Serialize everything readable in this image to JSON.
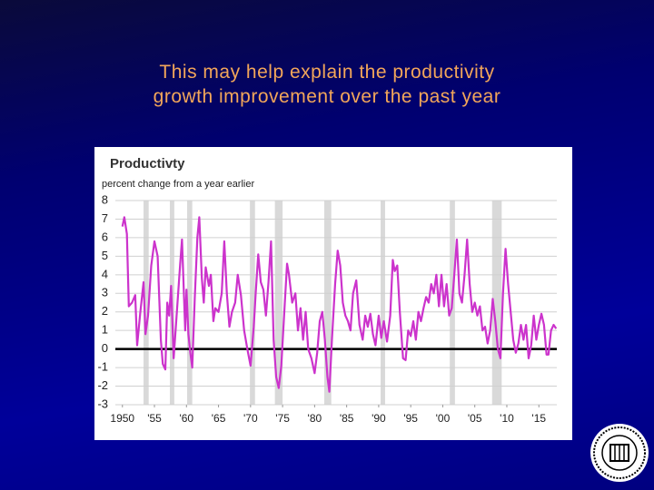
{
  "slide": {
    "title_lines": [
      "This may help explain the productivity",
      "growth improvement over the past year"
    ]
  },
  "chart_data": {
    "type": "line",
    "title": "Productivty",
    "subtitle": "percent change from a year earlier",
    "x": [
      1950.0,
      1950.3,
      1950.7,
      1951.0,
      1951.5,
      1952.0,
      1952.3,
      1952.8,
      1953.3,
      1953.6,
      1954.0,
      1954.5,
      1955.0,
      1955.5,
      1956.0,
      1956.3,
      1956.7,
      1957.0,
      1957.3,
      1957.6,
      1958.0,
      1958.5,
      1959.0,
      1959.3,
      1959.8,
      1960.0,
      1960.3,
      1960.6,
      1960.9,
      1961.3,
      1961.7,
      1962.0,
      1962.4,
      1962.7,
      1963.0,
      1963.5,
      1963.8,
      1964.2,
      1964.5,
      1965.0,
      1965.5,
      1965.9,
      1966.3,
      1966.7,
      1967.1,
      1967.6,
      1968.0,
      1968.5,
      1969.0,
      1969.5,
      1970.0,
      1970.5,
      1970.8,
      1971.2,
      1971.6,
      1972.0,
      1972.4,
      1972.8,
      1973.2,
      1973.6,
      1974.0,
      1974.4,
      1974.8,
      1975.3,
      1975.7,
      1976.0,
      1976.5,
      1977.0,
      1977.4,
      1977.8,
      1978.2,
      1978.6,
      1979.0,
      1979.5,
      1980.0,
      1980.4,
      1980.8,
      1981.2,
      1981.6,
      1982.0,
      1982.3,
      1982.7,
      1983.2,
      1983.6,
      1984.0,
      1984.4,
      1984.8,
      1985.2,
      1985.6,
      1986.0,
      1986.5,
      1987.0,
      1987.5,
      1987.9,
      1988.3,
      1988.7,
      1989.1,
      1989.5,
      1990.0,
      1990.4,
      1990.8,
      1991.3,
      1991.8,
      1992.2,
      1992.5,
      1992.9,
      1993.3,
      1993.8,
      1994.2,
      1994.6,
      1995.0,
      1995.4,
      1995.8,
      1996.2,
      1996.6,
      1997.0,
      1997.4,
      1997.8,
      1998.2,
      1998.6,
      1999.0,
      1999.4,
      1999.8,
      2000.2,
      2000.6,
      2001.0,
      2001.4,
      2001.8,
      2002.2,
      2002.6,
      2003.0,
      2003.4,
      2003.8,
      2004.2,
      2004.6,
      2005.0,
      2005.4,
      2005.8,
      2006.2,
      2006.6,
      2007.0,
      2007.4,
      2007.8,
      2008.2,
      2008.6,
      2009.0,
      2009.4,
      2009.8,
      2010.2,
      2010.6,
      2011.0,
      2011.4,
      2011.8,
      2012.2,
      2012.6,
      2013.0,
      2013.4,
      2013.8,
      2014.2,
      2014.6,
      2015.0,
      2015.4,
      2015.8,
      2016.2,
      2016.5,
      2016.9,
      2017.3,
      2017.7
    ],
    "series": [
      {
        "color": "#cc33cc",
        "values": [
          6.6,
          7.1,
          6.2,
          2.3,
          2.5,
          2.9,
          0.2,
          2.0,
          3.6,
          0.8,
          1.8,
          4.5,
          5.8,
          5.0,
          0.5,
          -0.8,
          -1.1,
          2.5,
          1.8,
          3.4,
          -0.5,
          2.0,
          4.5,
          5.9,
          1.0,
          3.2,
          0.8,
          -0.2,
          -1.0,
          2.8,
          6.0,
          7.1,
          3.8,
          2.5,
          4.4,
          3.4,
          4.0,
          1.5,
          2.2,
          2.0,
          3.0,
          5.8,
          3.0,
          1.2,
          2.0,
          2.5,
          4.0,
          2.9,
          1.0,
          0.0,
          -0.9,
          1.2,
          3.0,
          5.1,
          3.6,
          3.2,
          1.8,
          3.6,
          5.8,
          0.5,
          -1.5,
          -2.1,
          -0.9,
          2.2,
          4.6,
          4.0,
          2.5,
          3.0,
          1.0,
          2.2,
          0.5,
          2.0,
          0.0,
          -0.5,
          -1.3,
          -0.2,
          1.5,
          2.0,
          0.5,
          -1.5,
          -2.3,
          0.5,
          3.5,
          5.3,
          4.5,
          2.5,
          1.8,
          1.5,
          1.0,
          3.0,
          3.7,
          1.3,
          0.5,
          1.8,
          1.2,
          1.9,
          0.8,
          0.2,
          1.8,
          0.6,
          1.5,
          0.4,
          1.8,
          4.8,
          4.2,
          4.5,
          2.0,
          -0.5,
          -0.6,
          1.0,
          0.7,
          1.5,
          0.5,
          2.0,
          1.5,
          2.2,
          2.8,
          2.5,
          3.5,
          3.0,
          4.0,
          2.3,
          4.0,
          2.3,
          3.5,
          1.8,
          2.2,
          4.0,
          5.9,
          3.0,
          2.5,
          4.0,
          5.9,
          3.5,
          2.0,
          2.5,
          1.8,
          2.3,
          1.0,
          1.2,
          0.3,
          1.0,
          2.7,
          1.5,
          0.0,
          -0.5,
          3.0,
          5.4,
          3.5,
          2.0,
          0.5,
          -0.2,
          0.3,
          1.3,
          0.5,
          1.3,
          -0.5,
          0.2,
          1.8,
          0.5,
          1.3,
          1.9,
          1.3,
          -0.3,
          -0.3,
          1.0,
          1.3,
          1.1
        ]
      }
    ],
    "recessions": [
      [
        1953.3,
        1954.1
      ],
      [
        1957.4,
        1958.1
      ],
      [
        1960.1,
        1960.9
      ],
      [
        1969.9,
        1970.7
      ],
      [
        1973.8,
        1975.0
      ],
      [
        1981.5,
        1982.6
      ],
      [
        1990.3,
        1991.0
      ],
      [
        2001.1,
        2001.9
      ],
      [
        2007.7,
        2009.2
      ]
    ],
    "recession_color": "#d9d9d9",
    "hline": 0,
    "xlim": [
      1948.9,
      2017.8
    ],
    "xticks": [
      {
        "value": 1950,
        "label": "1950"
      },
      {
        "value": 1955,
        "label": "'55"
      },
      {
        "value": 1960,
        "label": "'60"
      },
      {
        "value": 1965,
        "label": "'65"
      },
      {
        "value": 1970,
        "label": "'70"
      },
      {
        "value": 1975,
        "label": "'75"
      },
      {
        "value": 1980,
        "label": "'80"
      },
      {
        "value": 1985,
        "label": "'85"
      },
      {
        "value": 1990,
        "label": "'90"
      },
      {
        "value": 1995,
        "label": "'95"
      },
      {
        "value": 2000,
        "label": "'00"
      },
      {
        "value": 2005,
        "label": "'05"
      },
      {
        "value": 2010,
        "label": "'10"
      },
      {
        "value": 2015,
        "label": "'15"
      }
    ],
    "ylim": [
      -3,
      8
    ],
    "yticks": [
      -3,
      -2,
      -1,
      0,
      1,
      2,
      3,
      4,
      5,
      6,
      7,
      8
    ],
    "grid": true
  }
}
